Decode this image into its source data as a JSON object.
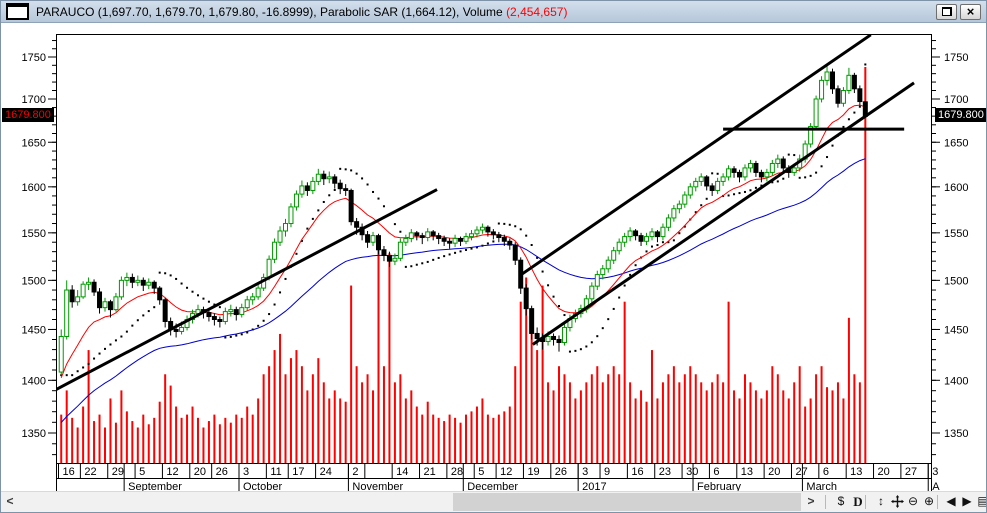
{
  "window": {
    "title_text": "PARAUCO (1,697.70, 1,679.70, 1,679.80, -16.8999), Parabolic SAR (1,664.12), Volume ",
    "title_volume": "(2,454,657)",
    "restore_label": "restore",
    "close_label": "close"
  },
  "colors": {
    "up_candle": "#009900",
    "down_candle": "#000000",
    "volume_bars": "#ff0000",
    "ma_fast": "#ff0000",
    "ma_slow": "#0000cc",
    "sar_dots": "#000000",
    "trendlines": "#000000",
    "title_volume_text": "#ff0000",
    "current_price_left_text": "#ff0000",
    "current_price_right_text": "#ffffff"
  },
  "scrollbar": {
    "left_glyph": "<",
    "right_glyph": ">"
  },
  "toolbar": {
    "items": [
      {
        "name": "refresh",
        "glyph": "$"
      },
      {
        "name": "periodicity-daily",
        "glyph": "D"
      },
      {
        "name": "vertical-zoom",
        "glyph": "↕"
      },
      {
        "name": "pan-tool",
        "glyph": "✛"
      },
      {
        "name": "zoom-out",
        "glyph": "⊖"
      },
      {
        "name": "zoom-in",
        "glyph": "⊕"
      },
      {
        "name": "scroll-chart-left",
        "glyph": "◀"
      },
      {
        "name": "scroll-chart-right",
        "glyph": "▶"
      },
      {
        "name": "data-window",
        "glyph": "▤"
      }
    ]
  },
  "chart_data": {
    "type": "candlestick",
    "title": "PARAUCO",
    "last_quote": {
      "high": 1697.7,
      "low": 1679.7,
      "close": 1679.8,
      "change": -16.8999
    },
    "indicators": {
      "parabolic_sar_last": 1664.12,
      "volume_last": 2454657
    },
    "y_axis": {
      "scale": "semi-log",
      "major_ticks": [
        1750,
        1700,
        1650,
        1600,
        1550,
        1500,
        1450,
        1400,
        1350
      ],
      "minor_step": 10,
      "current_price_label": "1679.800",
      "range_shown": [
        1350,
        1750
      ]
    },
    "x_axis": {
      "total_slots": 160,
      "data_slots": 148,
      "day_ticks": [
        {
          "label": "16",
          "slot": 0
        },
        {
          "label": "22",
          "slot": 4
        },
        {
          "label": "29",
          "slot": 9
        },
        {
          "label": "5",
          "slot": 14
        },
        {
          "label": "12",
          "slot": 19
        },
        {
          "label": "20",
          "slot": 24
        },
        {
          "label": "26",
          "slot": 28
        },
        {
          "label": "3",
          "slot": 33
        },
        {
          "label": "11",
          "slot": 38
        },
        {
          "label": "17",
          "slot": 42
        },
        {
          "label": "24",
          "slot": 47
        },
        {
          "label": "2",
          "slot": 53
        },
        {
          "label": "",
          "slot": 56
        },
        {
          "label": "14",
          "slot": 61
        },
        {
          "label": "21",
          "slot": 66
        },
        {
          "label": "28",
          "slot": 71
        },
        {
          "label": "5",
          "slot": 76
        },
        {
          "label": "12",
          "slot": 80
        },
        {
          "label": "19",
          "slot": 85
        },
        {
          "label": "26",
          "slot": 90
        },
        {
          "label": "3",
          "slot": 95
        },
        {
          "label": "9",
          "slot": 99
        },
        {
          "label": "16",
          "slot": 104
        },
        {
          "label": "23",
          "slot": 109
        },
        {
          "label": "30",
          "slot": 114
        },
        {
          "label": "6",
          "slot": 119
        },
        {
          "label": "13",
          "slot": 124
        },
        {
          "label": "20",
          "slot": 129
        },
        {
          "label": "27",
          "slot": 134
        },
        {
          "label": "6",
          "slot": 139
        },
        {
          "label": "13",
          "slot": 144
        },
        {
          "label": "20",
          "slot": 149
        },
        {
          "label": "27",
          "slot": 154
        },
        {
          "label": "3",
          "slot": 159
        }
      ],
      "months": [
        {
          "label": "",
          "slot": 0
        },
        {
          "label": "September",
          "slot": 12
        },
        {
          "label": "October",
          "slot": 33
        },
        {
          "label": "November",
          "slot": 53
        },
        {
          "label": "December",
          "slot": 74
        },
        {
          "label": "2017",
          "slot": 95
        },
        {
          "label": "February",
          "slot": 116
        },
        {
          "label": "March",
          "slot": 136
        },
        {
          "label": "A",
          "slot": 159
        }
      ]
    },
    "volume_note": "volume in millions of shares (estimated from bar heights; last bar = 2,454,657)",
    "candles": [
      [
        1408,
        1450,
        1405,
        1443,
        0.3
      ],
      [
        1443,
        1500,
        1440,
        1490,
        0.45
      ],
      [
        1490,
        1495,
        1472,
        1478,
        0.28
      ],
      [
        1478,
        1490,
        1474,
        1483,
        0.22
      ],
      [
        1483,
        1499,
        1481,
        1496,
        0.35
      ],
      [
        1496,
        1503,
        1490,
        1498,
        0.7
      ],
      [
        1498,
        1501,
        1484,
        1488,
        0.26
      ],
      [
        1488,
        1492,
        1466,
        1472,
        0.3
      ],
      [
        1472,
        1482,
        1468,
        1478,
        0.22
      ],
      [
        1478,
        1480,
        1462,
        1470,
        0.4
      ],
      [
        1470,
        1487,
        1468,
        1483,
        0.25
      ],
      [
        1483,
        1504,
        1480,
        1500,
        0.45
      ],
      [
        1500,
        1508,
        1494,
        1503,
        0.32
      ],
      [
        1503,
        1507,
        1492,
        1498,
        0.26
      ],
      [
        1498,
        1505,
        1494,
        1500,
        0.22
      ],
      [
        1500,
        1503,
        1489,
        1495,
        0.3
      ],
      [
        1495,
        1502,
        1491,
        1498,
        0.24
      ],
      [
        1498,
        1500,
        1486,
        1492,
        0.28
      ],
      [
        1492,
        1494,
        1475,
        1480,
        0.38
      ],
      [
        1480,
        1482,
        1452,
        1458,
        0.55
      ],
      [
        1458,
        1462,
        1444,
        1450,
        0.48
      ],
      [
        1450,
        1456,
        1442,
        1448,
        0.35
      ],
      [
        1448,
        1458,
        1445,
        1452,
        0.28
      ],
      [
        1452,
        1464,
        1449,
        1460,
        0.3
      ],
      [
        1460,
        1470,
        1456,
        1466,
        0.35
      ],
      [
        1466,
        1475,
        1462,
        1470,
        0.28
      ],
      [
        1470,
        1473,
        1461,
        1467,
        0.22
      ],
      [
        1467,
        1470,
        1458,
        1463,
        0.26
      ],
      [
        1463,
        1466,
        1454,
        1460,
        0.3
      ],
      [
        1460,
        1463,
        1452,
        1458,
        0.24
      ],
      [
        1458,
        1472,
        1455,
        1468,
        0.28
      ],
      [
        1468,
        1475,
        1463,
        1470,
        0.25
      ],
      [
        1470,
        1473,
        1459,
        1465,
        0.3
      ],
      [
        1465,
        1476,
        1462,
        1472,
        0.28
      ],
      [
        1472,
        1484,
        1469,
        1480,
        0.35
      ],
      [
        1480,
        1487,
        1475,
        1483,
        0.3
      ],
      [
        1483,
        1496,
        1480,
        1492,
        0.4
      ],
      [
        1492,
        1507,
        1489,
        1503,
        0.55
      ],
      [
        1503,
        1526,
        1500,
        1522,
        0.6
      ],
      [
        1522,
        1544,
        1518,
        1540,
        0.7
      ],
      [
        1540,
        1557,
        1536,
        1552,
        0.8
      ],
      [
        1552,
        1565,
        1546,
        1560,
        0.55
      ],
      [
        1560,
        1582,
        1556,
        1578,
        0.65
      ],
      [
        1578,
        1596,
        1574,
        1592,
        0.7
      ],
      [
        1592,
        1607,
        1588,
        1601,
        0.6
      ],
      [
        1601,
        1605,
        1590,
        1596,
        0.45
      ],
      [
        1596,
        1611,
        1592,
        1606,
        0.55
      ],
      [
        1606,
        1620,
        1602,
        1614,
        0.65
      ],
      [
        1614,
        1618,
        1602,
        1609,
        0.5
      ],
      [
        1609,
        1617,
        1604,
        1611,
        0.4
      ],
      [
        1611,
        1614,
        1598,
        1604,
        0.45
      ],
      [
        1604,
        1608,
        1592,
        1598,
        0.4
      ],
      [
        1598,
        1603,
        1590,
        1596,
        0.38
      ],
      [
        1596,
        1598,
        1558,
        1562,
        1.1
      ],
      [
        1562,
        1566,
        1548,
        1556,
        0.6
      ],
      [
        1556,
        1560,
        1542,
        1548,
        0.5
      ],
      [
        1548,
        1552,
        1534,
        1540,
        0.55
      ],
      [
        1540,
        1551,
        1536,
        1547,
        0.45
      ],
      [
        1547,
        1549,
        1527,
        1532,
        1.4
      ],
      [
        1532,
        1536,
        1520,
        1526,
        0.6
      ],
      [
        1526,
        1530,
        1514,
        1520,
        1.3
      ],
      [
        1520,
        1528,
        1516,
        1523,
        0.5
      ],
      [
        1523,
        1544,
        1520,
        1540,
        0.55
      ],
      [
        1540,
        1548,
        1536,
        1544,
        0.4
      ],
      [
        1544,
        1554,
        1540,
        1550,
        0.45
      ],
      [
        1550,
        1552,
        1542,
        1547,
        0.35
      ],
      [
        1547,
        1550,
        1538,
        1545,
        0.3
      ],
      [
        1545,
        1555,
        1541,
        1551,
        0.38
      ],
      [
        1551,
        1553,
        1542,
        1547,
        0.3
      ],
      [
        1547,
        1550,
        1538,
        1544,
        0.28
      ],
      [
        1544,
        1547,
        1536,
        1541,
        0.26
      ],
      [
        1541,
        1544,
        1533,
        1539,
        0.3
      ],
      [
        1539,
        1548,
        1535,
        1544,
        0.28
      ],
      [
        1544,
        1546,
        1536,
        1541,
        0.25
      ],
      [
        1541,
        1550,
        1538,
        1546,
        0.3
      ],
      [
        1546,
        1553,
        1542,
        1549,
        0.32
      ],
      [
        1549,
        1557,
        1545,
        1553,
        0.35
      ],
      [
        1553,
        1560,
        1549,
        1556,
        0.4
      ],
      [
        1556,
        1558,
        1546,
        1551,
        0.3
      ],
      [
        1551,
        1554,
        1543,
        1548,
        0.28
      ],
      [
        1548,
        1551,
        1540,
        1545,
        0.3
      ],
      [
        1545,
        1548,
        1536,
        1541,
        0.32
      ],
      [
        1541,
        1544,
        1532,
        1537,
        0.35
      ],
      [
        1537,
        1540,
        1516,
        1521,
        0.6
      ],
      [
        1521,
        1524,
        1486,
        1492,
        1.0
      ],
      [
        1492,
        1496,
        1464,
        1471,
        1.15
      ],
      [
        1471,
        1474,
        1440,
        1446,
        0.9
      ],
      [
        1446,
        1452,
        1434,
        1441,
        0.7
      ],
      [
        1441,
        1446,
        1430,
        1438,
        1.1
      ],
      [
        1438,
        1448,
        1434,
        1443,
        0.5
      ],
      [
        1443,
        1446,
        1434,
        1440,
        0.45
      ],
      [
        1440,
        1444,
        1428,
        1437,
        0.6
      ],
      [
        1437,
        1456,
        1434,
        1452,
        0.55
      ],
      [
        1452,
        1465,
        1448,
        1461,
        0.5
      ],
      [
        1461,
        1470,
        1457,
        1466,
        0.4
      ],
      [
        1466,
        1475,
        1462,
        1471,
        0.45
      ],
      [
        1471,
        1485,
        1467,
        1481,
        0.5
      ],
      [
        1481,
        1498,
        1477,
        1494,
        0.55
      ],
      [
        1494,
        1510,
        1490,
        1506,
        0.6
      ],
      [
        1506,
        1516,
        1501,
        1512,
        0.5
      ],
      [
        1512,
        1525,
        1508,
        1521,
        0.55
      ],
      [
        1521,
        1535,
        1517,
        1531,
        0.6
      ],
      [
        1531,
        1544,
        1527,
        1540,
        0.55
      ],
      [
        1540,
        1550,
        1535,
        1546,
        1.0
      ],
      [
        1546,
        1556,
        1541,
        1552,
        0.5
      ],
      [
        1552,
        1554,
        1542,
        1547,
        0.4
      ],
      [
        1547,
        1550,
        1536,
        1541,
        0.45
      ],
      [
        1541,
        1550,
        1537,
        1546,
        0.38
      ],
      [
        1546,
        1555,
        1542,
        1551,
        0.7
      ],
      [
        1551,
        1553,
        1540,
        1546,
        0.4
      ],
      [
        1546,
        1560,
        1542,
        1556,
        0.5
      ],
      [
        1556,
        1570,
        1552,
        1566,
        0.55
      ],
      [
        1566,
        1580,
        1562,
        1576,
        0.6
      ],
      [
        1576,
        1585,
        1571,
        1581,
        0.5
      ],
      [
        1581,
        1595,
        1577,
        1591,
        0.55
      ],
      [
        1591,
        1604,
        1587,
        1600,
        0.6
      ],
      [
        1600,
        1610,
        1595,
        1606,
        0.55
      ],
      [
        1606,
        1615,
        1601,
        1611,
        0.5
      ],
      [
        1611,
        1613,
        1596,
        1601,
        0.45
      ],
      [
        1601,
        1604,
        1590,
        1596,
        0.5
      ],
      [
        1596,
        1610,
        1592,
        1606,
        0.55
      ],
      [
        1606,
        1615,
        1601,
        1611,
        0.5
      ],
      [
        1611,
        1624,
        1607,
        1620,
        1.0
      ],
      [
        1620,
        1623,
        1610,
        1616,
        0.45
      ],
      [
        1616,
        1619,
        1605,
        1611,
        0.4
      ],
      [
        1611,
        1625,
        1607,
        1621,
        0.55
      ],
      [
        1621,
        1630,
        1616,
        1626,
        0.5
      ],
      [
        1626,
        1629,
        1611,
        1616,
        0.45
      ],
      [
        1616,
        1619,
        1605,
        1611,
        0.4
      ],
      [
        1611,
        1620,
        1606,
        1616,
        0.45
      ],
      [
        1616,
        1630,
        1612,
        1626,
        0.6
      ],
      [
        1626,
        1636,
        1621,
        1631,
        0.55
      ],
      [
        1631,
        1634,
        1616,
        1621,
        0.45
      ],
      [
        1621,
        1624,
        1610,
        1616,
        0.4
      ],
      [
        1616,
        1626,
        1612,
        1621,
        0.5
      ],
      [
        1621,
        1636,
        1617,
        1631,
        0.6
      ],
      [
        1631,
        1652,
        1627,
        1648,
        0.35
      ],
      [
        1648,
        1672,
        1644,
        1668,
        0.4
      ],
      [
        1668,
        1704,
        1664,
        1700,
        0.55
      ],
      [
        1700,
        1727,
        1696,
        1722,
        0.6
      ],
      [
        1722,
        1741,
        1716,
        1732,
        0.47
      ],
      [
        1732,
        1736,
        1706,
        1712,
        0.45
      ],
      [
        1712,
        1716,
        1690,
        1695,
        0.5
      ],
      [
        1695,
        1714,
        1691,
        1710,
        0.4
      ],
      [
        1710,
        1737,
        1706,
        1728,
        0.9
      ],
      [
        1728,
        1731,
        1707,
        1712,
        0.55
      ],
      [
        1712,
        1716,
        1692,
        1697,
        0.5
      ],
      [
        1696.7,
        1697.7,
        1679.7,
        1679.8,
        2.4547
      ]
    ],
    "overlays": {
      "ma_fast": {
        "type": "ema",
        "period": 12,
        "seed": 1395,
        "color": "#ff0000"
      },
      "ma_slow": {
        "type": "ema",
        "period": 45,
        "seed": 1356,
        "color": "#0000cc"
      },
      "parabolic_sar": {
        "step": 0.02,
        "max": 0.2,
        "color": "#000000"
      },
      "trendlines": [
        {
          "slot1": -0.5,
          "price1": 1391,
          "slot2": 69.2,
          "price2": 1597
        },
        {
          "slot1": 84.6,
          "price1": 1506,
          "slot2": 148.5,
          "price2": 1777
        },
        {
          "slot1": 86.7,
          "price1": 1435,
          "slot2": 156.4,
          "price2": 1719
        }
      ],
      "horizontal_line": {
        "price": 1665,
        "slot1": 121.5,
        "slot2": 154.6
      }
    }
  }
}
